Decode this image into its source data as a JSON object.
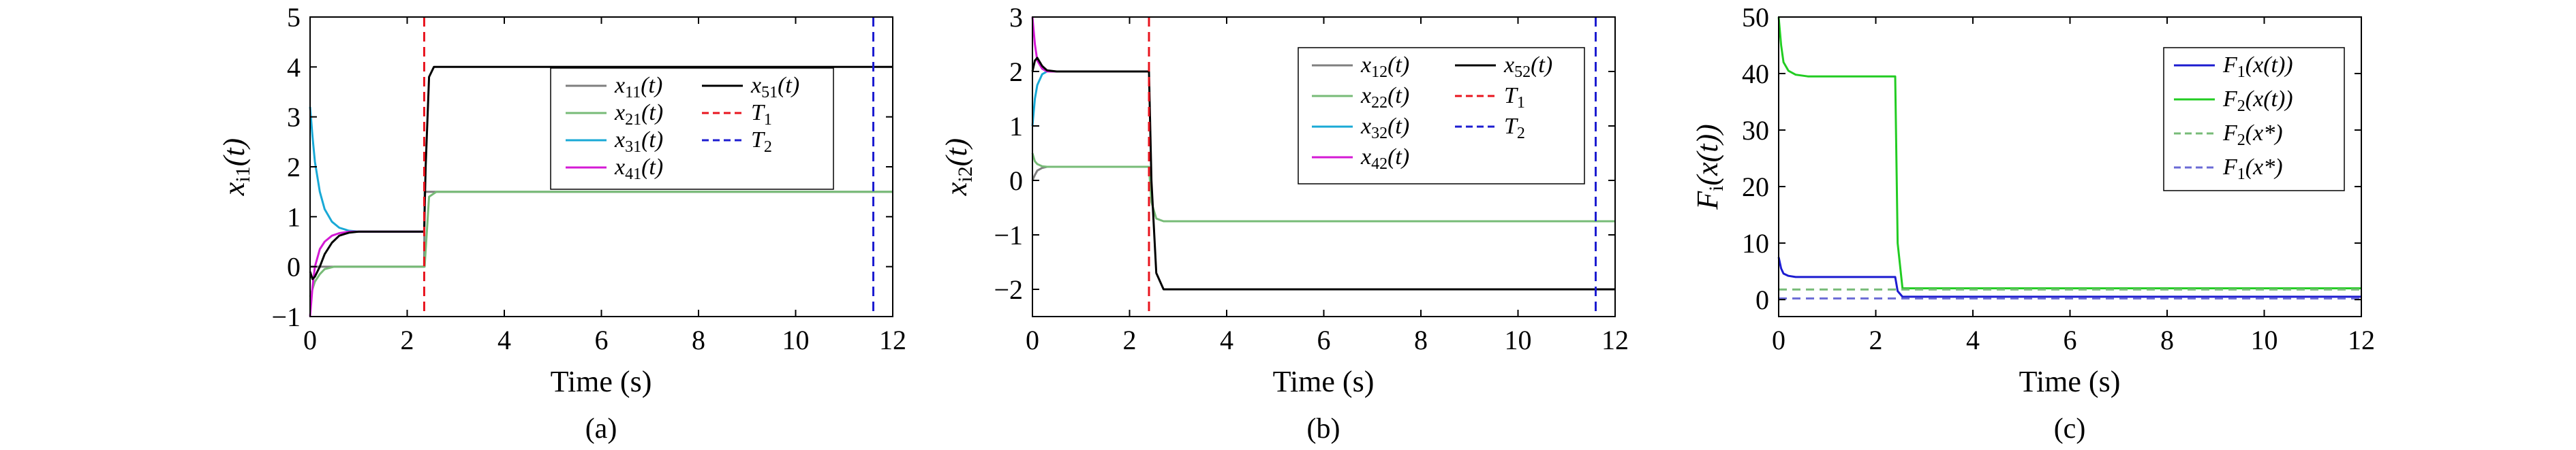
{
  "panels": [
    {
      "label": "(a)",
      "xlabel": "Time (s)",
      "ylabel_main": "x",
      "ylabel_sub": "i1",
      "ylabel_tail": "(t)",
      "xticks": [
        "0",
        "2",
        "4",
        "6",
        "8",
        "10",
        "12"
      ],
      "yticks": [
        "−1",
        "0",
        "1",
        "2",
        "3",
        "4",
        "5"
      ],
      "legend": [
        {
          "main": "x",
          "sub": "11",
          "tail": "(t)",
          "color": "#7f7f7f",
          "dash": false
        },
        {
          "main": "x",
          "sub": "51",
          "tail": "(t)",
          "color": "#000000",
          "dash": false
        },
        {
          "main": "x",
          "sub": "21",
          "tail": "(t)",
          "color": "#77bb77",
          "dash": false
        },
        {
          "main": "T",
          "sub": "1",
          "tail": "",
          "color": "#e8141e",
          "dash": true
        },
        {
          "main": "x",
          "sub": "31",
          "tail": "(t)",
          "color": "#19a9d6",
          "dash": false
        },
        {
          "main": "T",
          "sub": "2",
          "tail": "",
          "color": "#1c1cd0",
          "dash": true
        },
        {
          "main": "x",
          "sub": "41",
          "tail": "(t)",
          "color": "#d41ad4",
          "dash": false
        }
      ]
    },
    {
      "label": "(b)",
      "xlabel": "Time (s)",
      "ylabel_main": "x",
      "ylabel_sub": "i2",
      "ylabel_tail": "(t)",
      "xticks": [
        "0",
        "2",
        "4",
        "6",
        "8",
        "10",
        "12"
      ],
      "yticks": [
        "−2",
        "−1",
        "0",
        "1",
        "2",
        "3"
      ],
      "legend": [
        {
          "main": "x",
          "sub": "12",
          "tail": "(t)",
          "color": "#7f7f7f",
          "dash": false
        },
        {
          "main": "x",
          "sub": "52",
          "tail": "(t)",
          "color": "#000000",
          "dash": false
        },
        {
          "main": "x",
          "sub": "22",
          "tail": "(t)",
          "color": "#77bb77",
          "dash": false
        },
        {
          "main": "T",
          "sub": "1",
          "tail": "",
          "color": "#e8141e",
          "dash": true
        },
        {
          "main": "x",
          "sub": "32",
          "tail": "(t)",
          "color": "#19a9d6",
          "dash": false
        },
        {
          "main": "T",
          "sub": "2",
          "tail": "",
          "color": "#1c1cd0",
          "dash": true
        },
        {
          "main": "x",
          "sub": "42",
          "tail": "(t)",
          "color": "#d41ad4",
          "dash": false
        }
      ]
    },
    {
      "label": "(c)",
      "xlabel": "Time (s)",
      "ylabel_main": "F",
      "ylabel_sub": "i",
      "ylabel_tail": "(x(t))",
      "xticks": [
        "0",
        "2",
        "4",
        "6",
        "8",
        "10",
        "12"
      ],
      "yticks": [
        "0",
        "10",
        "20",
        "30",
        "40",
        "50"
      ],
      "legend": [
        {
          "main": "F",
          "sub": "1",
          "tail": "(x(t))",
          "color": "#1c1cd0",
          "dash": false
        },
        {
          "main": "F",
          "sub": "2",
          "tail": "(x(t))",
          "color": "#22cc22",
          "dash": false
        },
        {
          "main": "F",
          "sub": "2",
          "tail": "(x*)",
          "color": "#77bb77",
          "dash": true
        },
        {
          "main": "F",
          "sub": "1",
          "tail": "(x*)",
          "color": "#6a6ad6",
          "dash": true
        }
      ]
    }
  ],
  "chart_data": [
    {
      "type": "line",
      "xlim": [
        0,
        12
      ],
      "ylim": [
        -1,
        5
      ],
      "grid": false,
      "legend_position": "center-right",
      "vlines": [
        {
          "name": "T1",
          "x": 2.35,
          "color": "#e8141e",
          "dash": true
        },
        {
          "name": "T2",
          "x": 11.6,
          "color": "#1c1cd0",
          "dash": true
        }
      ],
      "series": [
        {
          "name": "x11(t)",
          "color": "#7f7f7f",
          "x": [
            0,
            0.1,
            0.2,
            0.3,
            0.5,
            0.8,
            1.2,
            2.35,
            2.36,
            2.45,
            2.6,
            12
          ],
          "y": [
            0,
            0.0,
            0.0,
            0.0,
            0.0,
            0.0,
            0.0,
            0.0,
            1.5,
            1.5,
            1.5,
            1.5
          ]
        },
        {
          "name": "x21(t)",
          "color": "#77bb77",
          "x": [
            0,
            0.1,
            0.2,
            0.3,
            0.5,
            0.8,
            1.2,
            2.35,
            2.36,
            2.45,
            2.6,
            12
          ],
          "y": [
            -0.6,
            -0.3,
            -0.15,
            -0.05,
            0.0,
            0.0,
            0.0,
            0.0,
            0.0,
            1.4,
            1.5,
            1.5
          ]
        },
        {
          "name": "x31(t)",
          "color": "#19a9d6",
          "x": [
            0,
            0.05,
            0.1,
            0.2,
            0.3,
            0.45,
            0.6,
            0.8,
            1.0,
            2.35
          ],
          "y": [
            3.2,
            2.6,
            2.1,
            1.5,
            1.15,
            0.9,
            0.78,
            0.72,
            0.7,
            0.7
          ]
        },
        {
          "name": "x41(t)",
          "color": "#d41ad4",
          "x": [
            0,
            0.05,
            0.1,
            0.2,
            0.3,
            0.45,
            0.6,
            0.8,
            1.0,
            2.35
          ],
          "y": [
            -1.0,
            -0.4,
            0.0,
            0.35,
            0.5,
            0.62,
            0.67,
            0.7,
            0.7,
            0.7
          ]
        },
        {
          "name": "x51(t)",
          "color": "#000000",
          "x": [
            0,
            0.05,
            0.1,
            0.2,
            0.3,
            0.45,
            0.6,
            0.8,
            1.0,
            2.35,
            2.38,
            2.45,
            2.55,
            12
          ],
          "y": [
            -0.1,
            -0.25,
            -0.2,
            0.0,
            0.25,
            0.48,
            0.62,
            0.68,
            0.7,
            0.7,
            2.0,
            3.8,
            4.0,
            4.0
          ]
        }
      ]
    },
    {
      "type": "line",
      "xlim": [
        0,
        12
      ],
      "ylim": [
        -2.5,
        3
      ],
      "grid": false,
      "legend_position": "top-right",
      "vlines": [
        {
          "name": "T1",
          "x": 2.4,
          "color": "#e8141e",
          "dash": true
        },
        {
          "name": "T2",
          "x": 11.6,
          "color": "#1c1cd0",
          "dash": true
        }
      ],
      "series": [
        {
          "name": "x12(t)",
          "color": "#7f7f7f",
          "x": [
            0,
            0.05,
            0.1,
            0.2,
            0.3,
            0.5,
            2.4
          ],
          "y": [
            0.0,
            0.1,
            0.18,
            0.23,
            0.25,
            0.25,
            0.25
          ]
        },
        {
          "name": "x22(t)",
          "color": "#77bb77",
          "x": [
            0,
            0.05,
            0.1,
            0.2,
            0.3,
            0.5,
            2.4,
            2.45,
            2.55,
            2.7,
            12
          ],
          "y": [
            0.5,
            0.35,
            0.3,
            0.26,
            0.25,
            0.25,
            0.25,
            -0.4,
            -0.7,
            -0.75,
            -0.75
          ]
        },
        {
          "name": "x32(t)",
          "color": "#19a9d6",
          "x": [
            0,
            0.05,
            0.1,
            0.2,
            0.3,
            0.5,
            2.4
          ],
          "y": [
            1.0,
            1.5,
            1.75,
            1.95,
            2.0,
            2.0,
            2.0
          ]
        },
        {
          "name": "x42(t)",
          "color": "#d41ad4",
          "x": [
            0,
            0.05,
            0.1,
            0.2,
            0.3,
            0.5,
            2.4
          ],
          "y": [
            3.0,
            2.5,
            2.2,
            2.05,
            2.0,
            2.0,
            2.0
          ]
        },
        {
          "name": "x52(t)",
          "color": "#000000",
          "x": [
            0,
            0.05,
            0.1,
            0.2,
            0.3,
            0.5,
            2.4,
            2.45,
            2.55,
            2.7,
            12
          ],
          "y": [
            2.0,
            2.2,
            2.25,
            2.1,
            2.02,
            2.0,
            2.0,
            0.0,
            -1.7,
            -2.0,
            -2.0
          ]
        }
      ]
    },
    {
      "type": "line",
      "xlim": [
        0,
        12
      ],
      "ylim": [
        -3,
        50
      ],
      "grid": false,
      "legend_position": "top-right",
      "series": [
        {
          "name": "F1(x(t))",
          "color": "#1c1cd0",
          "x": [
            0,
            0.05,
            0.1,
            0.2,
            0.35,
            0.6,
            2.4,
            2.45,
            2.55,
            12
          ],
          "y": [
            7.5,
            5.5,
            4.6,
            4.2,
            4.0,
            4.0,
            4.0,
            1.5,
            0.5,
            0.5
          ]
        },
        {
          "name": "F2(x(t))",
          "color": "#22cc22",
          "x": [
            0,
            0.05,
            0.1,
            0.2,
            0.35,
            0.6,
            1.0,
            2.4,
            2.45,
            2.55,
            12
          ],
          "y": [
            50,
            45,
            42,
            40.5,
            39.8,
            39.5,
            39.5,
            39.5,
            10,
            2.0,
            2.0
          ]
        },
        {
          "name": "F2(x2*)",
          "color": "#77bb77",
          "dash": true,
          "x": [
            0,
            12
          ],
          "y": [
            1.8,
            1.8
          ]
        },
        {
          "name": "F1(x1*)",
          "color": "#6a6ad6",
          "dash": true,
          "x": [
            0,
            12
          ],
          "y": [
            0.2,
            0.2
          ]
        }
      ]
    }
  ]
}
